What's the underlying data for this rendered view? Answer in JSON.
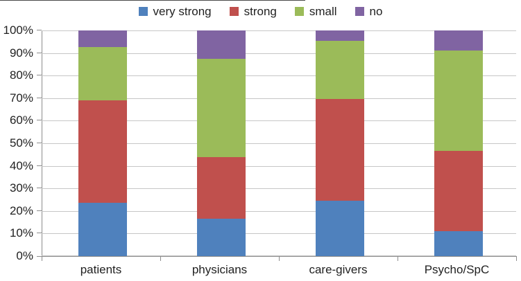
{
  "chart_data": {
    "type": "bar",
    "variant": "100-percent-stacked-column",
    "categories": [
      "patients",
      "physicians",
      "care-givers",
      "Psycho/SpC"
    ],
    "series": [
      {
        "name": "very strong",
        "color": "#4F81BD",
        "values": [
          23.5,
          16.5,
          24.5,
          11.0
        ]
      },
      {
        "name": "strong",
        "color": "#C0504D",
        "values": [
          45.5,
          27.5,
          45.0,
          35.5
        ]
      },
      {
        "name": "small",
        "color": "#9BBB59",
        "values": [
          23.5,
          43.5,
          26.0,
          44.5
        ]
      },
      {
        "name": "no",
        "color": "#8064A2",
        "values": [
          7.5,
          12.5,
          4.5,
          9.0
        ]
      }
    ],
    "title": "",
    "xlabel": "",
    "ylabel": "",
    "ylim": [
      0,
      100
    ],
    "ytick_step": 10,
    "ytick_labels": [
      "0%",
      "10%",
      "20%",
      "30%",
      "40%",
      "50%",
      "60%",
      "70%",
      "80%",
      "90%",
      "100%"
    ],
    "legend_position": "top",
    "grid": true
  },
  "styles": {
    "background": "#FFFFFF",
    "grid_color": "#C6C6C6",
    "axis_color": "#8C8C8C",
    "text_color": "#1F1F1F"
  }
}
